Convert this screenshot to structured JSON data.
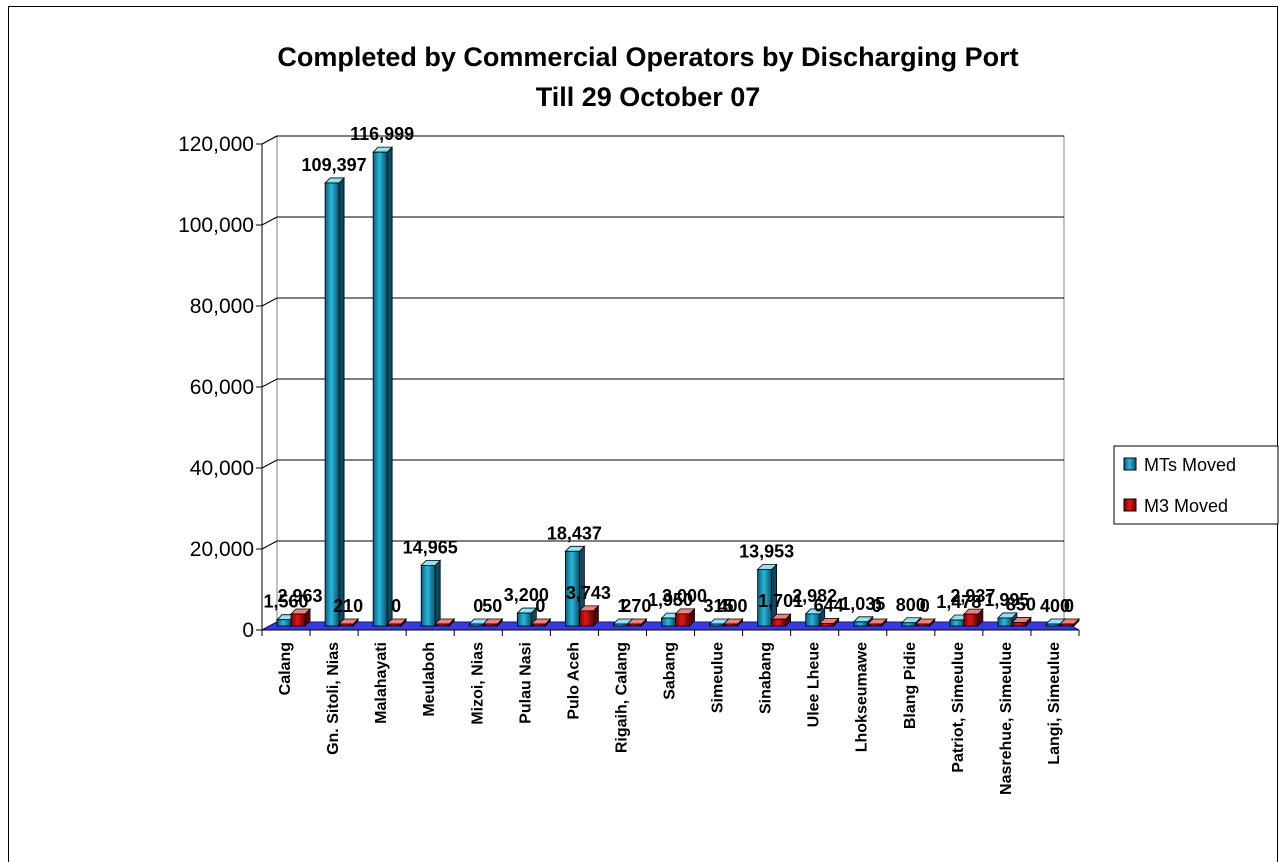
{
  "chart_data": {
    "type": "bar",
    "title": "Completed by Commercial Operators by Discharging Port",
    "subtitle": "Till 29 October 07",
    "categories": [
      "Calang",
      "Gn. Sitoli, Nias",
      "Malahayati",
      "Meulaboh",
      "Mizoi, Nias",
      "Pulau Nasi",
      "Pulo Aceh",
      "Rigaih, Calang",
      "Sabang",
      "Simeulue",
      "Sinabang",
      "Ulee Lheue",
      "Lhokseumawe",
      "Blang Pidie",
      "Patriot, Simeulue",
      "Nasrehue, Simeulue",
      "Langi, Simeulue"
    ],
    "series": [
      {
        "name": "MTs Moved",
        "color": "#1a9fc4",
        "values": [
          1560,
          109397,
          116999,
          14965,
          0,
          3200,
          18437,
          1,
          1950,
          315,
          13953,
          2982,
          1035,
          800,
          1478,
          1995,
          400
        ],
        "labels": [
          "1,560",
          "109,397",
          "116,999",
          "14,965",
          "0",
          "3,200",
          "18,437",
          "1",
          "1,950",
          "315",
          "13,953",
          "2,982",
          "1,035",
          "800",
          "1,478",
          "1,995",
          "400"
        ]
      },
      {
        "name": "M3 Moved",
        "color": "#c41010",
        "values": [
          2963,
          210,
          0,
          0,
          50,
          0,
          3743,
          270,
          3000,
          400,
          1701,
          644,
          0,
          0,
          2937,
          850,
          0
        ],
        "labels": [
          "2,963",
          "210",
          "0",
          "",
          "50",
          "0",
          "3,743",
          "270",
          "3,000",
          "400",
          "1,701",
          "644",
          "0",
          "0",
          "2,937",
          "850",
          "0"
        ]
      }
    ],
    "ylim": [
      0,
      120000
    ],
    "yticks": [
      0,
      20000,
      40000,
      60000,
      80000,
      100000,
      120000
    ],
    "ytick_labels": [
      "0",
      "20,000",
      "40,000",
      "60,000",
      "80,000",
      "100,000",
      "120,000"
    ],
    "grid": true,
    "legend": "right"
  }
}
